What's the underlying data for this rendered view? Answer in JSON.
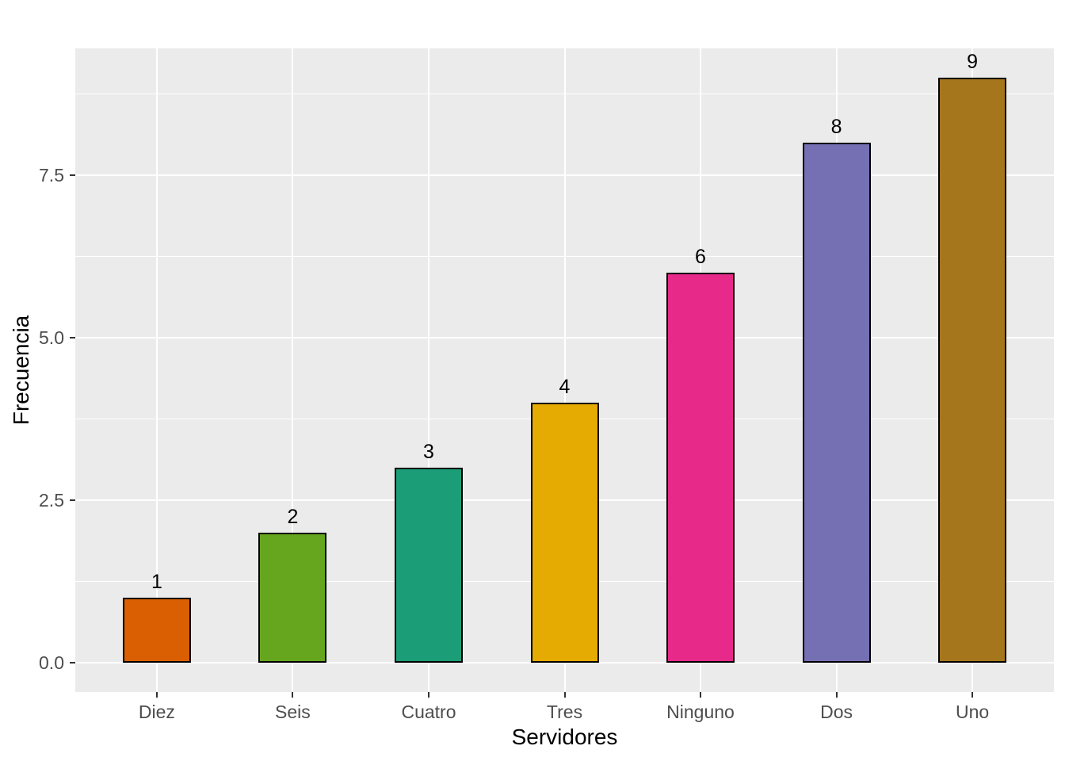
{
  "chart_data": {
    "type": "bar",
    "title": "",
    "xlabel": "Servidores",
    "ylabel": "Frecuencia",
    "categories": [
      "Diez",
      "Seis",
      "Cuatro",
      "Tres",
      "Ninguno",
      "Dos",
      "Uno"
    ],
    "values": [
      1,
      2,
      3,
      4,
      6,
      8,
      9
    ],
    "bar_value_labels": [
      "1",
      "2",
      "3",
      "4",
      "6",
      "8",
      "9"
    ],
    "bar_colors": [
      "#D95F02",
      "#66A61E",
      "#1B9E77",
      "#E6AB02",
      "#E7298A",
      "#7570B3",
      "#A6761D"
    ],
    "bar_outline_color": "#000000",
    "ylim": [
      -0.45,
      9.45
    ],
    "y_major_ticks": [
      0.0,
      2.5,
      5.0,
      7.5
    ],
    "y_tick_labels": [
      "0.0",
      "2.5",
      "5.0",
      "7.5"
    ],
    "y_minor_ticks": [
      1.25,
      3.75,
      6.25,
      8.75
    ],
    "grid": true,
    "legend_position": "none",
    "panel_background_color": "#EBEBEB",
    "gridline_color": "#FFFFFF",
    "axis_text_color": "#4D4D4D",
    "axis_title_color": "#000000",
    "tick_mark_color": "#333333"
  }
}
